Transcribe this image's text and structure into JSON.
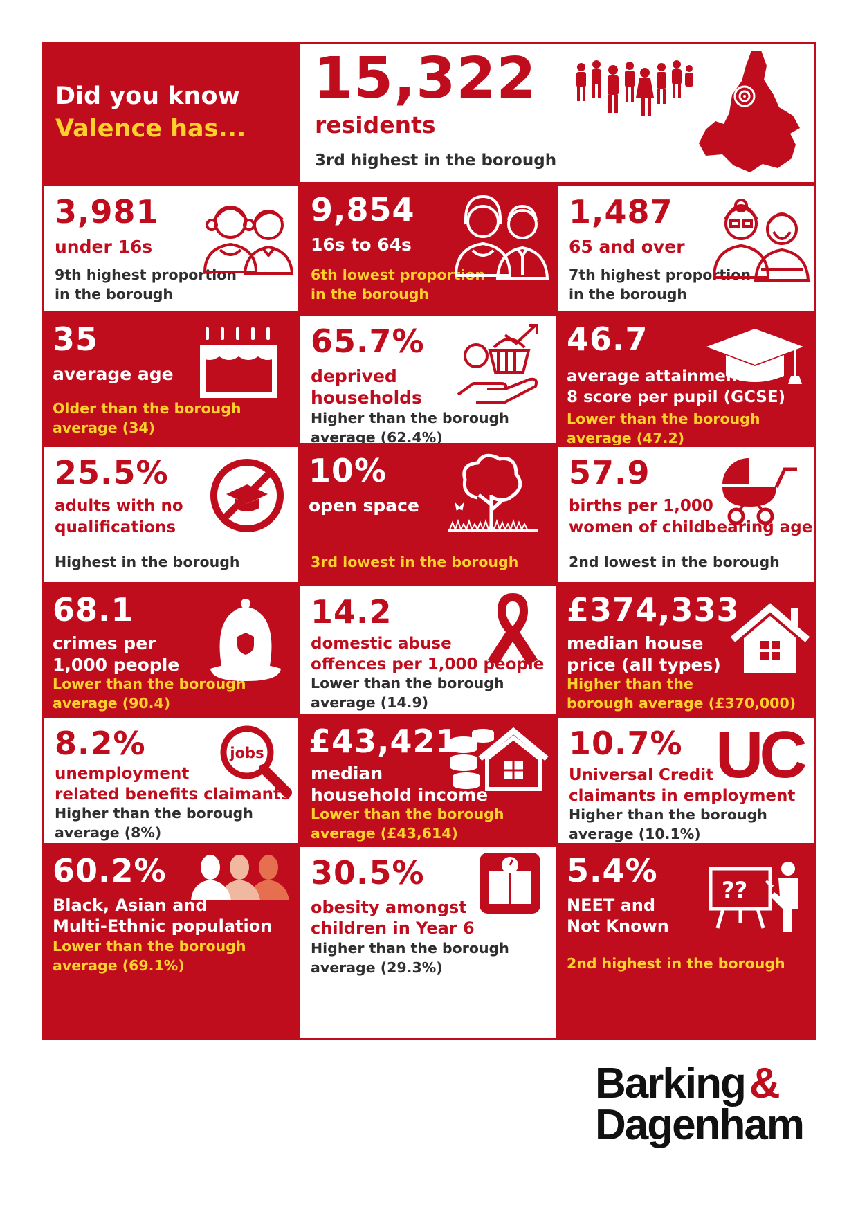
{
  "intro": {
    "line1": "Did you know",
    "line2": "Valence has..."
  },
  "residents": {
    "value": "15,322",
    "label": "residents",
    "note": "3rd highest in the borough"
  },
  "stats": [
    {
      "value": "3,981",
      "label": [
        "under 16s"
      ],
      "note": [
        "9th highest proportion",
        "in the borough"
      ],
      "icon": "children-icon"
    },
    {
      "value": "9,854",
      "label": [
        "16s to 64s"
      ],
      "note": [
        "6th lowest proportion",
        "in the borough"
      ],
      "icon": "adults-icon"
    },
    {
      "value": "1,487",
      "label": [
        "65 and over"
      ],
      "note": [
        "7th highest proportion",
        "in the borough"
      ],
      "icon": "elderly-icon"
    },
    {
      "value": "35",
      "label": [
        "average age"
      ],
      "note": [
        "Older than the borough",
        "average (34)"
      ],
      "icon": "birthday-cake-icon"
    },
    {
      "value": "65.7%",
      "label": [
        "deprived",
        "households"
      ],
      "note": [
        "Higher than the borough",
        "average (62.4%)"
      ],
      "icon": "deprivation-icon"
    },
    {
      "value": "46.7",
      "label": [
        "average attainment",
        "8 score per pupil (GCSE)"
      ],
      "note": [
        "Lower than the borough",
        "average (47.2)"
      ],
      "icon": "graduation-cap-icon"
    },
    {
      "value": "25.5%",
      "label": [
        "adults with no",
        "qualifications"
      ],
      "note": [
        "Highest in the borough"
      ],
      "icon": "no-qualifications-icon"
    },
    {
      "value": "10%",
      "label": [
        "open space"
      ],
      "note": [
        "3rd lowest in the borough"
      ],
      "icon": "tree-icon"
    },
    {
      "value": "57.9",
      "label": [
        "births per 1,000",
        "women of childbearing age"
      ],
      "note": [
        "2nd lowest in the borough"
      ],
      "icon": "pram-icon"
    },
    {
      "value": "68.1",
      "label": [
        "crimes per",
        "1,000 people"
      ],
      "note": [
        "Lower than the borough",
        "average (90.4)"
      ],
      "icon": "police-helmet-icon"
    },
    {
      "value": "14.2",
      "label": [
        "domestic abuse",
        "offences per 1,000 people"
      ],
      "note": [
        "Lower than the borough",
        "average (14.9)"
      ],
      "icon": "ribbon-icon"
    },
    {
      "value": "£374,333",
      "label": [
        "median house",
        "price (all types)"
      ],
      "note": [
        "Higher than the",
        "borough average (£370,000)"
      ],
      "icon": "house-icon"
    },
    {
      "value": "8.2%",
      "label": [
        "unemployment",
        "related benefits claimants"
      ],
      "note": [
        "Higher than the borough",
        "average (8%)"
      ],
      "icon": "jobs-search-icon"
    },
    {
      "value": "£43,421",
      "label": [
        "median",
        "household income"
      ],
      "note": [
        "Lower than the borough",
        "average (£43,614)"
      ],
      "icon": "coins-house-icon"
    },
    {
      "value": "10.7%",
      "label": [
        "Universal Credit",
        "claimants in employment"
      ],
      "note": [
        "Higher than the borough",
        "average (10.1%)"
      ],
      "icon": "uc-logo-icon"
    },
    {
      "value": "60.2%",
      "label": [
        "Black, Asian and",
        "Multi-Ethnic population"
      ],
      "note": [
        "Lower than the borough",
        "average (69.1%)"
      ],
      "icon": "people-silhouettes-icon"
    },
    {
      "value": "30.5%",
      "label": [
        "obesity amongst",
        "children in Year 6"
      ],
      "note": [
        "Higher than the borough",
        "average (29.3%)"
      ],
      "icon": "weighing-scale-icon"
    },
    {
      "value": "5.4%",
      "label": [
        "NEET and",
        "Not Known"
      ],
      "note": [
        "2nd highest in the borough"
      ],
      "icon": "teacher-board-icon"
    }
  ],
  "uc_text": "UC",
  "jobs_text": "jobs",
  "board_text": "??",
  "logo": {
    "line1": "Barking",
    "amp": "&",
    "line2": "Dagenham"
  },
  "colors": {
    "red": "#c00d1e",
    "yellow": "#fdd12a",
    "white": "#ffffff",
    "dark": "#2f2f2f"
  }
}
